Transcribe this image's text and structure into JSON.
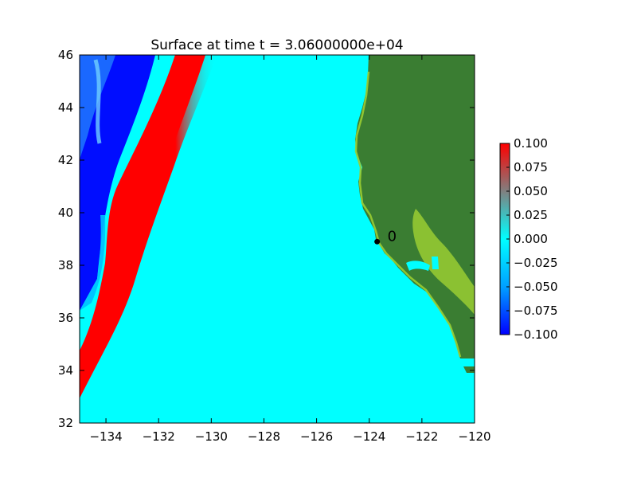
{
  "chart_data": {
    "type": "heatmap",
    "title": "Surface at time t = 3.06000000e+04",
    "xlabel": "",
    "ylabel": "",
    "xlim": [
      -135,
      -120
    ],
    "ylim": [
      32,
      46
    ],
    "x_ticks": [
      -134,
      -132,
      -130,
      -128,
      -126,
      -124,
      -122,
      -120
    ],
    "y_ticks": [
      32,
      34,
      36,
      38,
      40,
      42,
      44,
      46
    ],
    "x_tick_labels": [
      "−134",
      "−132",
      "−130",
      "−128",
      "−126",
      "−124",
      "−122",
      "−120"
    ],
    "y_tick_labels": [
      "32",
      "34",
      "36",
      "38",
      "40",
      "42",
      "44",
      "46"
    ],
    "colorbar": {
      "min": -0.1,
      "max": 0.1,
      "ticks": [
        0.1,
        0.075,
        0.05,
        0.025,
        0.0,
        -0.025,
        -0.05,
        -0.075,
        -0.1
      ],
      "tick_labels": [
        "0.100",
        "0.075",
        "0.050",
        "0.025",
        "0.000",
        "−0.025",
        "−0.050",
        "−0.075",
        "−0.100"
      ],
      "colors": [
        "#0000ff",
        "#00a0ff",
        "#00ffff",
        "#808080",
        "#ff0000"
      ]
    },
    "colors": {
      "ocean_zero": "#00ffff",
      "wave_crest": "#ff0000",
      "wave_trough": "#0000ff",
      "land": "#3a7d32",
      "land_lowlying": "#9acd32"
    },
    "gauge": {
      "label": "0",
      "lon": -123.7,
      "lat": 38.9
    }
  }
}
